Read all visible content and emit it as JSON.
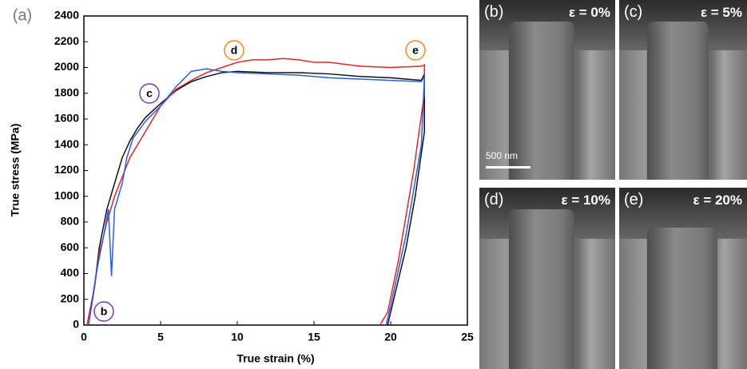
{
  "chart_data": {
    "type": "line",
    "panel_label": "(a)",
    "xlabel": "True strain (%)",
    "ylabel": "True stress (MPa)",
    "xlim": [
      0,
      25
    ],
    "xticks": [
      0,
      5,
      10,
      15,
      20,
      25
    ],
    "ylim": [
      0,
      2400
    ],
    "yticks": [
      0,
      200,
      400,
      600,
      800,
      1000,
      1200,
      1400,
      1600,
      1800,
      2000,
      2200,
      2400
    ],
    "grid": false,
    "series": [
      {
        "color": "#111111",
        "x": [
          0.3,
          0.7,
          1,
          1.5,
          2,
          2.5,
          3,
          3.5,
          4,
          5,
          6,
          7,
          8,
          9,
          10,
          12,
          14,
          16,
          18,
          20,
          22,
          22.2,
          22.2,
          21.6,
          21,
          20.2,
          19.8
        ],
        "values": [
          0,
          300,
          600,
          900,
          1100,
          1300,
          1430,
          1530,
          1610,
          1720,
          1820,
          1890,
          1930,
          1960,
          1970,
          1960,
          1960,
          1950,
          1930,
          1920,
          1900,
          1950,
          1500,
          1000,
          600,
          200,
          0
        ]
      },
      {
        "color": "#e0262b",
        "x": [
          0.2,
          0.7,
          1,
          1.5,
          2,
          2.5,
          3,
          4,
          5,
          6,
          7,
          8,
          9,
          10,
          11,
          12,
          13,
          14,
          15,
          16,
          18,
          20,
          22,
          22.2,
          22.2,
          21.5,
          20.5,
          19.8,
          19.3
        ],
        "values": [
          0,
          300,
          550,
          800,
          1000,
          1150,
          1300,
          1500,
          1700,
          1830,
          1900,
          1960,
          2000,
          2040,
          2060,
          2060,
          2070,
          2060,
          2040,
          2040,
          2010,
          2000,
          2010,
          2020,
          1800,
          1200,
          500,
          100,
          0
        ]
      },
      {
        "color": "#2b5fd9",
        "x": [
          0.3,
          0.8,
          1.3,
          1.6,
          1.8,
          2,
          2.5,
          2.8,
          3.2,
          4,
          5,
          6,
          7,
          8,
          9,
          10,
          12,
          14,
          16,
          18,
          20,
          22,
          22.2,
          22,
          21,
          20,
          19.7
        ],
        "values": [
          0,
          400,
          700,
          900,
          380,
          900,
          1100,
          1300,
          1450,
          1580,
          1700,
          1850,
          1970,
          1990,
          1970,
          1960,
          1950,
          1940,
          1920,
          1910,
          1900,
          1890,
          1930,
          1400,
          700,
          150,
          0
        ]
      }
    ],
    "annotations": [
      {
        "text": "b",
        "color": "#7b3f9e"
      },
      {
        "text": "c",
        "color": "#7b3f9e"
      },
      {
        "text": "d",
        "color": "#f08a24"
      },
      {
        "text": "e",
        "color": "#f08a24"
      }
    ]
  },
  "panels": [
    {
      "label": "(b)",
      "strain": "ε = 0%"
    },
    {
      "label": "(c)",
      "strain": "ε = 5%"
    },
    {
      "label": "(d)",
      "strain": "ε = 10%"
    },
    {
      "label": "(e)",
      "strain": "ε = 20%"
    }
  ],
  "scale_bar": "500 nm"
}
